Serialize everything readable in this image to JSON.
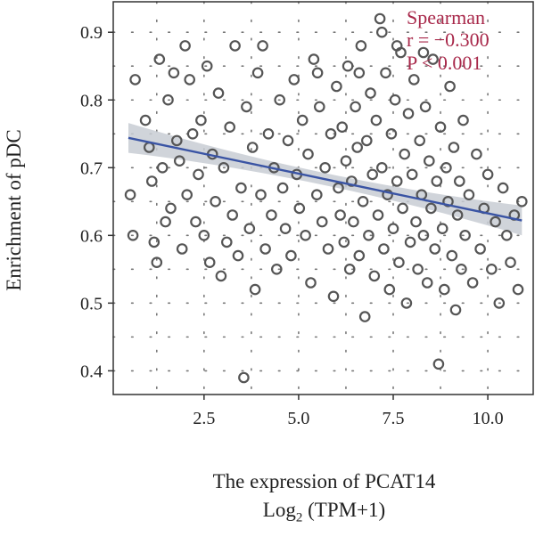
{
  "chart_data": {
    "type": "scatter",
    "xlabel": "The expression of PCAT14",
    "xlabel_unit": {
      "prefix": "Log",
      "subscript": "2",
      "suffix": " (TPM+1)"
    },
    "ylabel": "Enrichment of pDC",
    "xlim": [
      0.1,
      11.2
    ],
    "ylim": [
      0.365,
      0.945
    ],
    "x_ticks": [
      2.5,
      5.0,
      7.5,
      10.0
    ],
    "x_tick_labels": [
      "2.5",
      "5.0",
      "7.5",
      "10.0"
    ],
    "y_ticks": [
      0.4,
      0.5,
      0.6,
      0.7,
      0.8,
      0.9
    ],
    "y_tick_labels": [
      "0.4",
      "0.5",
      "0.6",
      "0.7",
      "0.8",
      "0.9"
    ],
    "grid": "dotted",
    "annotation": {
      "method": "Spearman",
      "r_text": "r = −0.300",
      "p_text": "P < 0.001",
      "color": "#a8284a"
    },
    "regression": {
      "x": [
        0.5,
        10.9
      ],
      "y": [
        0.744,
        0.622
      ],
      "ci_halfwidth_ends": 0.022,
      "ci_halfwidth_center": 0.009,
      "line_color": "#3a54a4",
      "band_color": "#c8ccd4"
    },
    "point_style": {
      "stroke": "#555555",
      "fill": "none"
    },
    "points": [
      [
        0.55,
        0.66
      ],
      [
        0.62,
        0.6
      ],
      [
        0.68,
        0.83
      ],
      [
        0.95,
        0.77
      ],
      [
        1.05,
        0.73
      ],
      [
        1.12,
        0.68
      ],
      [
        1.18,
        0.59
      ],
      [
        1.25,
        0.56
      ],
      [
        1.32,
        0.86
      ],
      [
        1.4,
        0.7
      ],
      [
        1.48,
        0.62
      ],
      [
        1.55,
        0.8
      ],
      [
        1.62,
        0.64
      ],
      [
        1.7,
        0.84
      ],
      [
        1.78,
        0.74
      ],
      [
        1.85,
        0.71
      ],
      [
        1.92,
        0.58
      ],
      [
        2.0,
        0.88
      ],
      [
        2.05,
        0.66
      ],
      [
        2.12,
        0.83
      ],
      [
        2.2,
        0.75
      ],
      [
        2.28,
        0.62
      ],
      [
        2.35,
        0.69
      ],
      [
        2.42,
        0.77
      ],
      [
        2.5,
        0.6
      ],
      [
        2.58,
        0.85
      ],
      [
        2.65,
        0.56
      ],
      [
        2.72,
        0.72
      ],
      [
        2.8,
        0.65
      ],
      [
        2.88,
        0.81
      ],
      [
        2.95,
        0.54
      ],
      [
        3.02,
        0.7
      ],
      [
        3.1,
        0.59
      ],
      [
        3.18,
        0.76
      ],
      [
        3.25,
        0.63
      ],
      [
        3.32,
        0.88
      ],
      [
        3.4,
        0.57
      ],
      [
        3.48,
        0.67
      ],
      [
        3.55,
        0.39
      ],
      [
        3.62,
        0.79
      ],
      [
        3.7,
        0.61
      ],
      [
        3.78,
        0.73
      ],
      [
        3.85,
        0.52
      ],
      [
        3.92,
        0.84
      ],
      [
        4.0,
        0.66
      ],
      [
        4.05,
        0.88
      ],
      [
        4.12,
        0.58
      ],
      [
        4.2,
        0.75
      ],
      [
        4.28,
        0.63
      ],
      [
        4.35,
        0.7
      ],
      [
        4.42,
        0.55
      ],
      [
        4.5,
        0.8
      ],
      [
        4.58,
        0.67
      ],
      [
        4.65,
        0.61
      ],
      [
        4.72,
        0.74
      ],
      [
        4.8,
        0.57
      ],
      [
        4.88,
        0.83
      ],
      [
        4.95,
        0.69
      ],
      [
        5.02,
        0.64
      ],
      [
        5.1,
        0.77
      ],
      [
        5.18,
        0.6
      ],
      [
        5.25,
        0.72
      ],
      [
        5.32,
        0.53
      ],
      [
        5.4,
        0.86
      ],
      [
        5.48,
        0.66
      ],
      [
        5.55,
        0.79
      ],
      [
        5.62,
        0.62
      ],
      [
        5.7,
        0.7
      ],
      [
        5.78,
        0.58
      ],
      [
        5.85,
        0.75
      ],
      [
        5.92,
        0.51
      ],
      [
        6.0,
        0.82
      ],
      [
        6.05,
        0.67
      ],
      [
        6.1,
        0.63
      ],
      [
        6.15,
        0.76
      ],
      [
        6.2,
        0.59
      ],
      [
        6.25,
        0.71
      ],
      [
        6.3,
        0.85
      ],
      [
        6.35,
        0.55
      ],
      [
        6.4,
        0.68
      ],
      [
        6.45,
        0.62
      ],
      [
        6.5,
        0.79
      ],
      [
        6.55,
        0.73
      ],
      [
        6.6,
        0.57
      ],
      [
        6.65,
        0.88
      ],
      [
        6.7,
        0.65
      ],
      [
        6.75,
        0.48
      ],
      [
        6.8,
        0.74
      ],
      [
        6.85,
        0.6
      ],
      [
        6.9,
        0.81
      ],
      [
        6.95,
        0.69
      ],
      [
        7.0,
        0.54
      ],
      [
        7.05,
        0.77
      ],
      [
        7.1,
        0.63
      ],
      [
        7.15,
        0.92
      ],
      [
        7.2,
        0.7
      ],
      [
        7.25,
        0.58
      ],
      [
        7.3,
        0.84
      ],
      [
        7.35,
        0.66
      ],
      [
        7.4,
        0.52
      ],
      [
        7.45,
        0.75
      ],
      [
        7.5,
        0.61
      ],
      [
        7.55,
        0.8
      ],
      [
        7.6,
        0.68
      ],
      [
        7.65,
        0.56
      ],
      [
        7.7,
        0.87
      ],
      [
        7.75,
        0.64
      ],
      [
        7.8,
        0.72
      ],
      [
        7.85,
        0.5
      ],
      [
        7.9,
        0.78
      ],
      [
        7.95,
        0.59
      ],
      [
        8.0,
        0.69
      ],
      [
        8.05,
        0.83
      ],
      [
        8.1,
        0.62
      ],
      [
        8.15,
        0.55
      ],
      [
        8.2,
        0.74
      ],
      [
        8.25,
        0.66
      ],
      [
        8.3,
        0.6
      ],
      [
        8.35,
        0.79
      ],
      [
        8.4,
        0.53
      ],
      [
        8.45,
        0.71
      ],
      [
        8.5,
        0.64
      ],
      [
        8.55,
        0.86
      ],
      [
        8.6,
        0.58
      ],
      [
        8.65,
        0.68
      ],
      [
        8.7,
        0.41
      ],
      [
        8.75,
        0.76
      ],
      [
        8.8,
        0.61
      ],
      [
        8.85,
        0.52
      ],
      [
        8.9,
        0.7
      ],
      [
        8.95,
        0.65
      ],
      [
        9.0,
        0.82
      ],
      [
        9.05,
        0.57
      ],
      [
        9.1,
        0.73
      ],
      [
        9.15,
        0.49
      ],
      [
        9.2,
        0.63
      ],
      [
        9.25,
        0.68
      ],
      [
        9.3,
        0.55
      ],
      [
        9.35,
        0.77
      ],
      [
        9.4,
        0.6
      ],
      [
        9.5,
        0.66
      ],
      [
        9.6,
        0.53
      ],
      [
        9.7,
        0.72
      ],
      [
        9.8,
        0.58
      ],
      [
        9.9,
        0.64
      ],
      [
        10.0,
        0.69
      ],
      [
        10.1,
        0.55
      ],
      [
        10.2,
        0.62
      ],
      [
        10.3,
        0.5
      ],
      [
        10.4,
        0.67
      ],
      [
        10.5,
        0.6
      ],
      [
        10.6,
        0.56
      ],
      [
        10.7,
        0.63
      ],
      [
        10.8,
        0.52
      ],
      [
        10.9,
        0.65
      ],
      [
        6.6,
        0.84
      ],
      [
        7.2,
        0.9
      ],
      [
        7.6,
        0.88
      ],
      [
        8.3,
        0.87
      ],
      [
        5.5,
        0.84
      ]
    ]
  }
}
